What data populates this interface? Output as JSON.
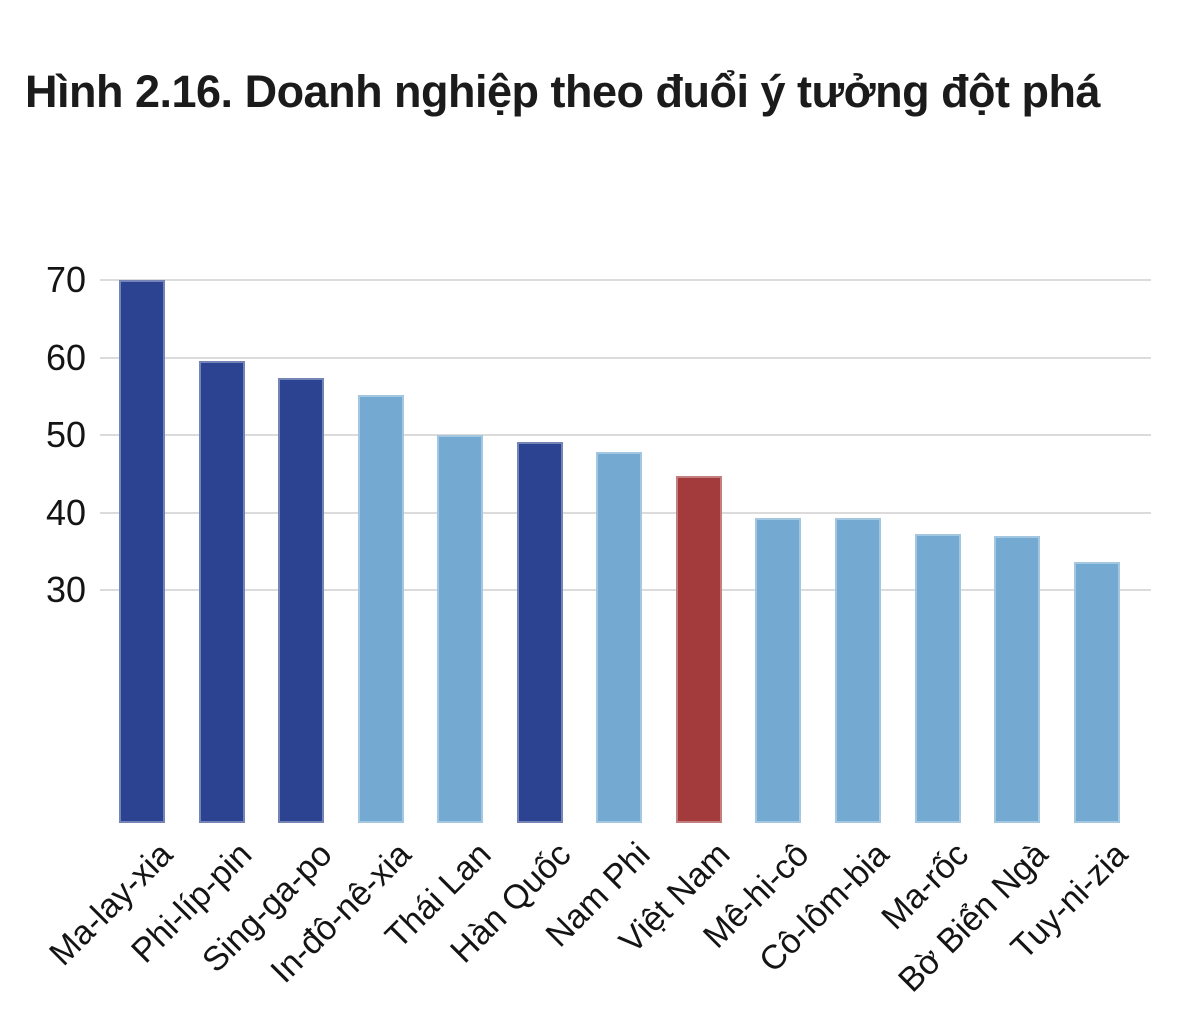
{
  "title": "Hình 2.16. Doanh nghiệp theo đuổi ý tưởng đột phá",
  "chart_data": {
    "type": "bar",
    "title": "Hình 2.16. Doanh nghiệp theo đuổi ý tưởng đột phá",
    "categories": [
      "Ma-lay-xia",
      "Phi-líp-pin",
      "Sing-ga-po",
      "In-đô-nê-xia",
      "Thái Lan",
      "Hàn Quốc",
      "Nam Phi",
      "Việt Nam",
      "Mê-hi-cô",
      "Cô-lôm-bia",
      "Ma-rốc",
      "Bờ Biển Ngà",
      "Tuy-ni-zia"
    ],
    "values": [
      70,
      59.5,
      57.4,
      55.2,
      50,
      49.1,
      47.8,
      44.7,
      39.3,
      39.3,
      37.3,
      37,
      33.6
    ],
    "bar_color_roles": [
      "navy",
      "navy",
      "navy",
      "light",
      "light",
      "navy",
      "light",
      "red",
      "light",
      "light",
      "light",
      "light",
      "light"
    ],
    "colors": {
      "navy": "#2b4391",
      "light": "#74a9d2",
      "red": "#a33b3d"
    },
    "highlight_category": "Việt Nam",
    "xlabel": "",
    "ylabel": "",
    "yticks": [
      30,
      40,
      50,
      60,
      70
    ],
    "ylim": [
      0,
      73.2
    ],
    "grid": "horizontal-only",
    "legend": "none",
    "x_label_rotation_deg": 45
  }
}
